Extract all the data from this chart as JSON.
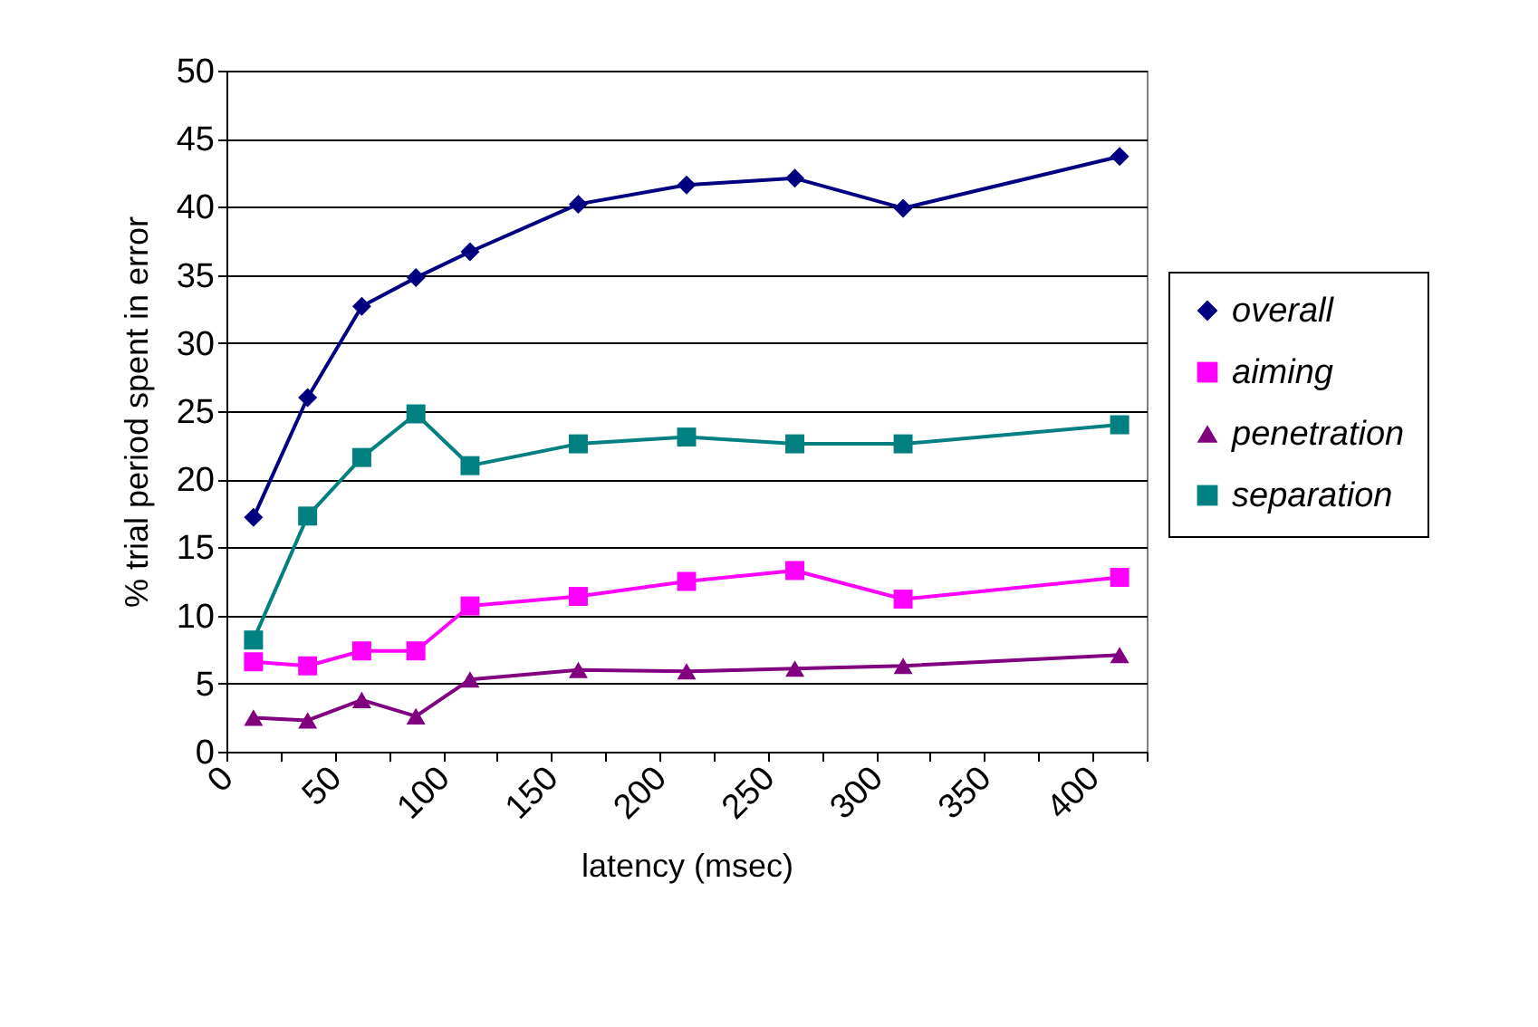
{
  "chart_data": {
    "type": "line",
    "xlabel": "latency (msec)",
    "ylabel": "% trial period spent in error",
    "x": [
      12.5,
      37.5,
      62.5,
      87.5,
      112.5,
      162.5,
      212.5,
      262.5,
      312.5,
      412.5
    ],
    "series": [
      {
        "name": "overall",
        "color": "#000080",
        "marker": "diamond",
        "values": [
          17.2,
          26.0,
          32.7,
          34.8,
          36.7,
          40.2,
          41.6,
          42.1,
          39.9,
          43.7
        ]
      },
      {
        "name": "aiming",
        "color": "#ff00ff",
        "marker": "square",
        "values": [
          6.6,
          6.3,
          7.4,
          7.4,
          10.7,
          11.4,
          12.5,
          13.3,
          11.2,
          12.8
        ]
      },
      {
        "name": "penetration",
        "color": "#800080",
        "marker": "triangle",
        "values": [
          2.5,
          2.3,
          3.8,
          2.6,
          5.3,
          6.0,
          5.9,
          6.1,
          6.3,
          7.1
        ]
      },
      {
        "name": "separation",
        "color": "#008080",
        "marker": "square",
        "values": [
          8.2,
          17.3,
          21.6,
          24.8,
          21.0,
          22.6,
          23.1,
          22.6,
          22.6,
          24.0
        ]
      }
    ],
    "xlim": [
      0,
      425
    ],
    "xticks": [
      0,
      {
        "value": 25,
        "label": null
      },
      50,
      {
        "value": 75,
        "label": null
      },
      100,
      {
        "value": 125,
        "label": null
      },
      150,
      {
        "value": 175,
        "label": null
      },
      200,
      {
        "value": 225,
        "label": null
      },
      250,
      {
        "value": 275,
        "label": null
      },
      300,
      {
        "value": 325,
        "label": null
      },
      350,
      {
        "value": 375,
        "label": null
      },
      400,
      {
        "value": 425,
        "label": null
      }
    ],
    "ylim": [
      0,
      50
    ],
    "yticks": [
      0,
      5,
      10,
      15,
      20,
      25,
      30,
      35,
      40,
      45,
      50
    ],
    "grid": "y",
    "legend": "right",
    "line_style": "solid"
  }
}
